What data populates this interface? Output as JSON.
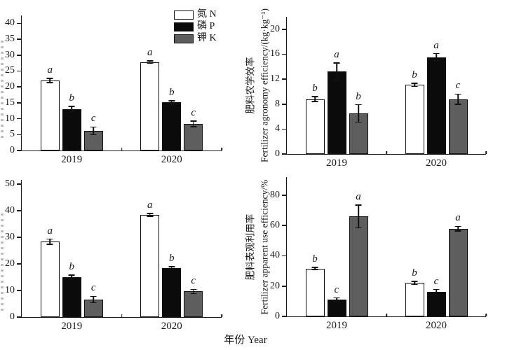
{
  "figure": {
    "xlabel": "年份 Year",
    "background": "#ffffff",
    "axis_color": "#1a1a1a"
  },
  "legend": {
    "items": [
      {
        "label": "氮 N",
        "fill": "#ffffff"
      },
      {
        "label": "磷 P",
        "fill": "#0b0b0b"
      },
      {
        "label": "钾 K",
        "fill": "#5e5e5e"
      }
    ]
  },
  "chart_data": [
    {
      "type": "bar",
      "position": "top-left",
      "ylabel_cn": "",
      "ylabel_en": "",
      "ylabel_cropped": true,
      "yticks": [
        0,
        5,
        10,
        15,
        20,
        25,
        30,
        35,
        40
      ],
      "ymax": 42.5,
      "categories": [
        "2019",
        "2020"
      ],
      "series": [
        {
          "name": "氮 N",
          "fill": "#ffffff",
          "values": [
            22.0,
            27.8
          ],
          "errors": [
            0.7,
            0.4
          ],
          "letters": [
            "a",
            "a"
          ]
        },
        {
          "name": "磷 P",
          "fill": "#0b0b0b",
          "values": [
            13.0,
            15.2
          ],
          "errors": [
            0.9,
            0.5
          ],
          "letters": [
            "b",
            "b"
          ]
        },
        {
          "name": "钾 K",
          "fill": "#5e5e5e",
          "values": [
            6.2,
            8.4
          ],
          "errors": [
            1.2,
            0.9
          ],
          "letters": [
            "c",
            "c"
          ]
        }
      ],
      "show_legend": true
    },
    {
      "type": "bar",
      "position": "top-right",
      "ylabel_cn": "肥料农学效率",
      "ylabel_en": "Fertilizer agronomy efficiency/(kg·kg⁻¹)",
      "ylabel_cropped": false,
      "yticks": [
        0,
        4,
        8,
        12,
        16,
        20
      ],
      "ymax": 22,
      "categories": [
        "2019",
        "2020"
      ],
      "series": [
        {
          "name": "氮 N",
          "fill": "#ffffff",
          "values": [
            8.8,
            11.1
          ],
          "errors": [
            0.4,
            0.25
          ],
          "letters": [
            "b",
            "b"
          ]
        },
        {
          "name": "磷 P",
          "fill": "#0b0b0b",
          "values": [
            13.2,
            15.5
          ],
          "errors": [
            1.4,
            0.6
          ],
          "letters": [
            "a",
            "a"
          ]
        },
        {
          "name": "钾 K",
          "fill": "#5e5e5e",
          "values": [
            6.5,
            8.8
          ],
          "errors": [
            1.4,
            0.8
          ],
          "letters": [
            "b",
            "c"
          ]
        }
      ],
      "show_legend": false
    },
    {
      "type": "bar",
      "position": "bottom-left",
      "ylabel_cn": "",
      "ylabel_en": "",
      "ylabel_cropped": true,
      "yticks": [
        0,
        10,
        20,
        30,
        40,
        50
      ],
      "ymax": 51.5,
      "categories": [
        "2019",
        "2020"
      ],
      "series": [
        {
          "name": "氮 N",
          "fill": "#ffffff",
          "values": [
            28.3,
            38.4
          ],
          "errors": [
            1.0,
            0.5
          ],
          "letters": [
            "a",
            "a"
          ]
        },
        {
          "name": "磷 P",
          "fill": "#0b0b0b",
          "values": [
            15.0,
            18.3
          ],
          "errors": [
            0.8,
            0.6
          ],
          "letters": [
            "b",
            "b"
          ]
        },
        {
          "name": "钾 K",
          "fill": "#5e5e5e",
          "values": [
            6.6,
            9.6
          ],
          "errors": [
            1.2,
            0.8
          ],
          "letters": [
            "c",
            "c"
          ]
        }
      ],
      "show_legend": false
    },
    {
      "type": "bar",
      "position": "bottom-right",
      "ylabel_cn": "肥料表观利用率",
      "ylabel_en": "Fertilizer apparent use efficiency/%",
      "ylabel_cropped": false,
      "yticks": [
        0,
        20,
        40,
        60,
        80
      ],
      "ymax": 92,
      "categories": [
        "2019",
        "2020"
      ],
      "series": [
        {
          "name": "氮 N",
          "fill": "#ffffff",
          "values": [
            31.5,
            22.0
          ],
          "errors": [
            0.8,
            1.0
          ],
          "letters": [
            "b",
            "b"
          ]
        },
        {
          "name": "磷 P",
          "fill": "#0b0b0b",
          "values": [
            11.0,
            16.0
          ],
          "errors": [
            1.2,
            1.8
          ],
          "letters": [
            "c",
            "c"
          ]
        },
        {
          "name": "钾 K",
          "fill": "#5e5e5e",
          "values": [
            66.0,
            58.0
          ],
          "errors": [
            7.5,
            1.5
          ],
          "letters": [
            "a",
            "a"
          ]
        }
      ],
      "show_legend": false
    }
  ]
}
